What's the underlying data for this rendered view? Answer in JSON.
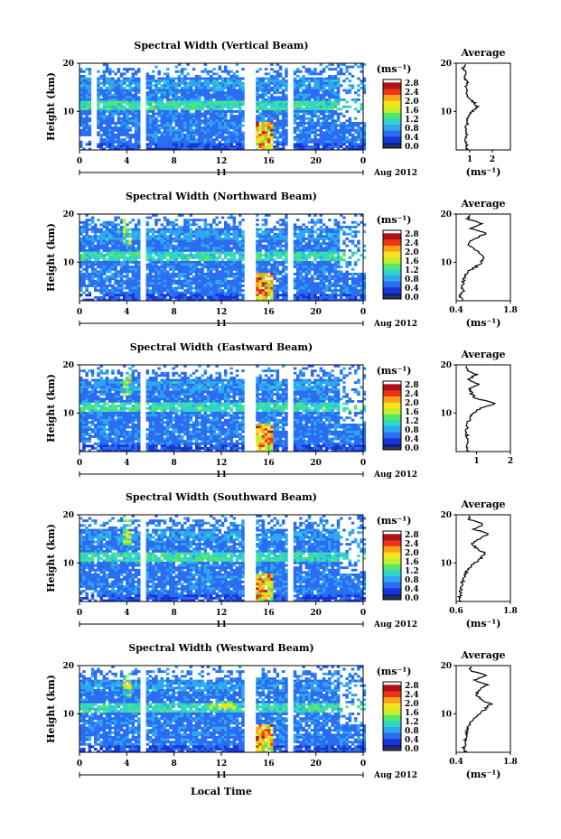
{
  "figure": {
    "xlabel": "Local Time",
    "colorbar_unit": "(ms⁻¹)",
    "colorbar_ticks": [
      "0.0",
      "0.4",
      "0.8",
      "1.2",
      "1.6",
      "2.0",
      "2.4",
      "2.8"
    ],
    "date_day": "11",
    "date_monthyear": "Aug 2012",
    "ylabel": "Height (km)",
    "x_ticks": [
      "0",
      "4",
      "8",
      "12",
      "16",
      "20",
      "0"
    ],
    "colors": {
      "scale": [
        "#0b1f8c",
        "#1736d8",
        "#2a6cf2",
        "#2fa6f0",
        "#2fd6c8",
        "#54e86a",
        "#c6ee2a",
        "#f7e21b",
        "#f8a11a",
        "#ee3418",
        "#b0121c"
      ],
      "colorbar_base": "#333355",
      "gap": "#ffffff"
    }
  },
  "chart_data": [
    {
      "type": "heatmap",
      "title": "Spectral Width (Vertical Beam)",
      "xlabel": "",
      "ylabel": "Height (km)",
      "xlim": [
        0,
        24
      ],
      "ylim": [
        2,
        20
      ],
      "clim": [
        0.0,
        2.8
      ],
      "gaps_hours": [
        [
          0.9,
          1.3
        ],
        [
          5.1,
          5.6
        ],
        [
          13.7,
          14.7
        ],
        [
          17.6,
          18.0
        ]
      ],
      "profile": {
        "title": "Average",
        "xlabel": "(ms⁻¹)",
        "xlim": [
          0.4,
          2.8
        ],
        "xticks": [
          "1",
          "2"
        ],
        "ylim": [
          2,
          20
        ],
        "yticks": [
          "20",
          "10"
        ],
        "height_km": [
          2,
          3,
          4,
          5,
          6,
          7,
          8,
          9,
          10,
          11,
          12,
          13,
          14,
          15,
          16,
          17,
          18,
          19,
          20
        ],
        "width_ms": [
          0.9,
          0.85,
          0.85,
          0.88,
          0.87,
          0.86,
          0.9,
          0.95,
          1.1,
          1.35,
          1.15,
          0.95,
          0.85,
          0.8,
          0.95,
          0.75,
          0.9,
          0.7,
          0.8
        ]
      }
    },
    {
      "type": "heatmap",
      "title": "Spectral Width (Northward Beam)",
      "xlabel": "",
      "ylabel": "Height (km)",
      "xlim": [
        0,
        24
      ],
      "ylim": [
        2,
        20
      ],
      "clim": [
        0.0,
        2.8
      ],
      "gaps_hours": [
        [
          5.1,
          5.6
        ],
        [
          13.7,
          14.7
        ],
        [
          17.6,
          18.0
        ]
      ],
      "profile": {
        "title": "Average",
        "xlabel": "(ms⁻¹)",
        "xlim": [
          0.4,
          1.8
        ],
        "xticks": [
          "0.4",
          "1.8"
        ],
        "ylim": [
          2,
          20
        ],
        "yticks": [
          "20",
          "10"
        ],
        "height_km": [
          2,
          3,
          4,
          5,
          6,
          7,
          8,
          9,
          10,
          11,
          12,
          13,
          14,
          15,
          16,
          17,
          18,
          19,
          20
        ],
        "width_ms": [
          0.55,
          0.5,
          0.6,
          0.55,
          0.58,
          0.62,
          0.7,
          0.9,
          1.05,
          1.15,
          1.0,
          0.8,
          0.7,
          0.9,
          1.2,
          0.75,
          1.05,
          0.7,
          0.8
        ]
      }
    },
    {
      "type": "heatmap",
      "title": "Spectral Width (Eastward Beam)",
      "xlabel": "",
      "ylabel": "Height (km)",
      "xlim": [
        0,
        24
      ],
      "ylim": [
        2,
        20
      ],
      "clim": [
        0.0,
        2.8
      ],
      "gaps_hours": [
        [
          5.1,
          5.6
        ],
        [
          13.7,
          14.7
        ],
        [
          17.6,
          18.0
        ]
      ],
      "profile": {
        "title": "Average",
        "xlabel": "",
        "xlim": [
          0.4,
          2.0
        ],
        "xticks": [
          "1",
          "2"
        ],
        "ylim": [
          2,
          20
        ],
        "yticks": [
          "20",
          "10"
        ],
        "height_km": [
          2,
          3,
          4,
          5,
          6,
          7,
          8,
          9,
          10,
          11,
          12,
          13,
          14,
          15,
          16,
          17,
          18,
          19,
          20
        ],
        "width_ms": [
          0.75,
          0.7,
          0.72,
          0.72,
          0.7,
          0.72,
          0.75,
          0.8,
          0.9,
          1.1,
          1.55,
          1.0,
          0.85,
          0.8,
          1.05,
          0.75,
          1.0,
          0.7,
          0.7
        ]
      }
    },
    {
      "type": "heatmap",
      "title": "Spectral Width (Southward Beam)",
      "xlabel": "",
      "ylabel": "Height (km)",
      "xlim": [
        0,
        24
      ],
      "ylim": [
        2,
        20
      ],
      "clim": [
        0.0,
        2.8
      ],
      "gaps_hours": [
        [
          5.1,
          5.6
        ],
        [
          13.7,
          14.7
        ],
        [
          17.6,
          18.0
        ]
      ],
      "profile": {
        "title": "Average",
        "xlabel": "(ms⁻¹)",
        "xlim": [
          0.6,
          1.8
        ],
        "xticks": [
          "0.6",
          "1.8"
        ],
        "ylim": [
          2,
          20
        ],
        "yticks": [
          "20",
          "10"
        ],
        "height_km": [
          2,
          3,
          4,
          5,
          6,
          7,
          8,
          9,
          10,
          11,
          12,
          13,
          14,
          15,
          16,
          17,
          18,
          19,
          20
        ],
        "width_ms": [
          0.7,
          0.68,
          0.7,
          0.72,
          0.74,
          0.78,
          0.82,
          0.9,
          1.0,
          1.15,
          1.25,
          1.05,
          0.95,
          1.1,
          1.3,
          1.0,
          1.2,
          0.9,
          0.85
        ]
      }
    },
    {
      "type": "heatmap",
      "title": "Spectral Width (Westward Beam)",
      "xlabel": "Local Time",
      "ylabel": "Height (km)",
      "xlim": [
        0,
        24
      ],
      "ylim": [
        2,
        20
      ],
      "clim": [
        0.0,
        2.8
      ],
      "gaps_hours": [
        [
          5.1,
          5.6
        ],
        [
          13.7,
          14.7
        ],
        [
          17.6,
          18.0
        ]
      ],
      "profile": {
        "title": "Average",
        "xlabel": "(ms⁻¹)",
        "xlim": [
          0.4,
          1.8
        ],
        "xticks": [
          "0.4",
          "1.8"
        ],
        "ylim": [
          2,
          20
        ],
        "yticks": [
          "20",
          "10"
        ],
        "height_km": [
          2,
          3,
          4,
          5,
          6,
          7,
          8,
          9,
          10,
          11,
          12,
          13,
          14,
          15,
          16,
          17,
          18,
          19,
          20
        ],
        "width_ms": [
          0.62,
          0.6,
          0.63,
          0.65,
          0.66,
          0.7,
          0.75,
          0.85,
          1.0,
          1.15,
          1.3,
          1.05,
          0.9,
          1.0,
          1.2,
          0.9,
          1.15,
          0.75,
          0.8
        ]
      }
    }
  ]
}
